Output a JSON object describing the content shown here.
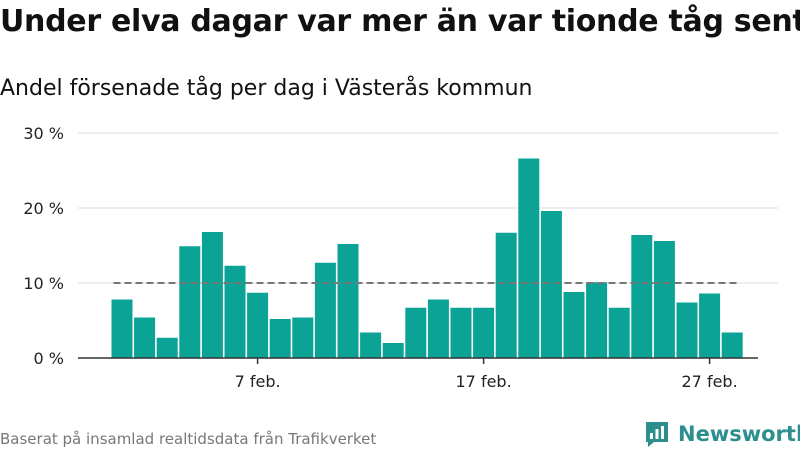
{
  "title": "Under elva dagar var mer än var tionde tåg sent",
  "subtitle": "Andel försenade tåg per dag i Västerås kommun",
  "source": "Baserat på insamlad realtidsdata från Trafikverket",
  "brand": {
    "name": "Newsworthy",
    "icon": "newsworthy-logo-icon",
    "color": "#2c8f8e"
  },
  "chart_data": {
    "type": "bar",
    "title": "Under elva dagar var mer än var tionde tåg sent",
    "subtitle": "Andel försenade tåg per dag i Västerås kommun",
    "start_date": "1 feb.",
    "categories": [
      "1 feb.",
      "2 feb.",
      "3 feb.",
      "4 feb.",
      "5 feb.",
      "6 feb.",
      "7 feb.",
      "8 feb.",
      "9 feb.",
      "10 feb.",
      "11 feb.",
      "12 feb.",
      "13 feb.",
      "14 feb.",
      "15 feb.",
      "16 feb.",
      "17 feb.",
      "18 feb.",
      "19 feb.",
      "20 feb.",
      "21 feb.",
      "22 feb.",
      "23 feb.",
      "24 feb.",
      "25 feb.",
      "26 feb.",
      "27 feb.",
      "28 feb."
    ],
    "values": [
      7.8,
      5.4,
      2.7,
      14.9,
      16.8,
      12.3,
      8.7,
      5.2,
      5.4,
      12.7,
      15.2,
      3.4,
      2.0,
      6.7,
      7.8,
      6.7,
      6.7,
      16.7,
      26.6,
      19.6,
      8.8,
      10.1,
      6.7,
      16.4,
      15.6,
      7.4,
      8.6,
      3.4
    ],
    "x_ticks": [
      {
        "index": 6,
        "label": "7 feb."
      },
      {
        "index": 16,
        "label": "17 feb."
      },
      {
        "index": 26,
        "label": "27 feb."
      }
    ],
    "y_ticks": [
      {
        "value": 0,
        "label": "0 %"
      },
      {
        "value": 10,
        "label": "10 %"
      },
      {
        "value": 20,
        "label": "20 %"
      },
      {
        "value": 30,
        "label": "30 %"
      }
    ],
    "ylim": [
      0,
      30
    ],
    "reference_line": {
      "value": 10,
      "style": "dashed",
      "color": "#777777"
    },
    "bar_color": "#0aa396",
    "grid": true,
    "xlabel": "",
    "ylabel": ""
  }
}
